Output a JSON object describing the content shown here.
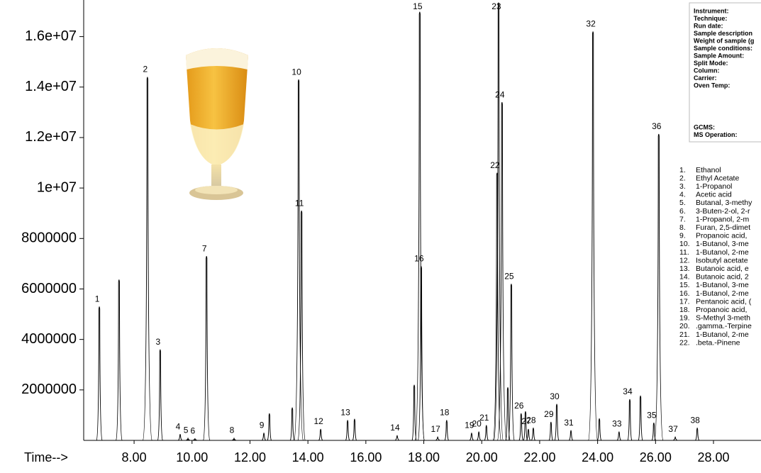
{
  "chart_data": {
    "type": "chromatogram",
    "x_label": "Time-->",
    "xlim": [
      6.26,
      29.64
    ],
    "ylim": [
      0,
      17450000
    ],
    "xticks": [
      {
        "value": 8,
        "label": "8.00"
      },
      {
        "value": 10,
        "label": "10.00"
      },
      {
        "value": 12,
        "label": "12.00"
      },
      {
        "value": 14,
        "label": "14.00"
      },
      {
        "value": 16,
        "label": "16.00"
      },
      {
        "value": 18,
        "label": "18.00"
      },
      {
        "value": 20,
        "label": "20.00"
      },
      {
        "value": 22,
        "label": "22.00"
      },
      {
        "value": 24,
        "label": "24.00"
      },
      {
        "value": 26,
        "label": "26.00"
      },
      {
        "value": 28,
        "label": "28.00"
      }
    ],
    "yticks": [
      2000000,
      4000000,
      6000000,
      8000000,
      {
        "value": 10000000,
        "label": "1e+07"
      },
      {
        "value": 12000000,
        "label": "1.2e+07"
      },
      {
        "value": 14000000,
        "label": "1.4e+07"
      },
      {
        "value": 16000000,
        "label": "1.6e+07"
      }
    ],
    "color": "#000000",
    "peak_labels": [
      1,
      null,
      2,
      3,
      4,
      5,
      6,
      7,
      8,
      9,
      null,
      null,
      10,
      11,
      12,
      13,
      null,
      14,
      null,
      15,
      16,
      17,
      18,
      19,
      20,
      21,
      22,
      23,
      24,
      null,
      25,
      26,
      null,
      27,
      28,
      29,
      30,
      31,
      32,
      null,
      33,
      34,
      null,
      35,
      36,
      37,
      38
    ],
    "x": [
      6.8,
      7.48,
      8.46,
      8.9,
      9.59,
      9.86,
      10.1,
      10.5,
      11.45,
      12.48,
      12.67,
      13.46,
      13.68,
      13.78,
      14.44,
      15.37,
      15.61,
      17.08,
      17.67,
      17.86,
      17.91,
      18.48,
      18.79,
      19.65,
      19.9,
      20.16,
      20.53,
      20.58,
      20.7,
      20.9,
      21.02,
      21.36,
      21.51,
      21.61,
      21.78,
      22.39,
      22.59,
      23.08,
      23.84,
      24.06,
      24.74,
      25.11,
      25.48,
      25.94,
      26.11,
      26.68,
      27.44
    ],
    "values": [
      5300000,
      6370000,
      14400000,
      3600000,
      250000,
      100000,
      80000,
      7300000,
      100000,
      300000,
      1070000,
      1300000,
      14300000,
      9100000,
      450000,
      800000,
      850000,
      200000,
      2200000,
      16980000,
      6900000,
      150000,
      800000,
      300000,
      350000,
      600000,
      10600000,
      17350000,
      13400000,
      2100000,
      6200000,
      1070000,
      1150000,
      450000,
      500000,
      730000,
      1440000,
      400000,
      16200000,
      870000,
      350000,
      1630000,
      1770000,
      700000,
      12140000,
      150000,
      500000
    ],
    "compounds": [
      {
        "number": "1.",
        "name": "Ethanol"
      },
      {
        "number": "2.",
        "name": "Ethyl Acetate"
      },
      {
        "number": "3.",
        "name": "1-Propanol"
      },
      {
        "number": "4.",
        "name": "Acetic acid"
      },
      {
        "number": "5.",
        "name": "Butanal, 3-methy"
      },
      {
        "number": "6.",
        "name": "3-Buten-2-ol, 2-r"
      },
      {
        "number": "7.",
        "name": "1-Propanol, 2-m"
      },
      {
        "number": "8.",
        "name": "Furan, 2,5-dimet"
      },
      {
        "number": "9.",
        "name": "Propanoic acid,"
      },
      {
        "number": "10.",
        "name": "1-Butanol, 3-me"
      },
      {
        "number": "11.",
        "name": "1-Butanol, 2-me"
      },
      {
        "number": "12.",
        "name": "Isobutyl acetate"
      },
      {
        "number": "13.",
        "name": "Butanoic acid, e"
      },
      {
        "number": "14.",
        "name": "Butanoic acid, 2"
      },
      {
        "number": "15.",
        "name": "1-Butanol, 3-me"
      },
      {
        "number": "16.",
        "name": "1-Butanol, 2-me"
      },
      {
        "number": "17.",
        "name": "Pentanoic acid, ("
      },
      {
        "number": "18.",
        "name": "Propanoic acid,"
      },
      {
        "number": "19.",
        "name": "S-Methyl 3-meth"
      },
      {
        "number": "20.",
        "name": ".gamma.-Terpine"
      },
      {
        "number": "21.",
        "name": "1-Butanol, 2-me"
      },
      {
        "number": "22.",
        "name": ".beta.-Pinene"
      }
    ],
    "info_fields": [
      "Instrument:",
      "Technique:",
      "Run date:",
      "Sample description",
      "Weight of sample (g",
      "Sample conditions:",
      "Sample Amount:",
      "Split Mode:",
      "Column:",
      "Carrier:",
      "Oven Temp:"
    ],
    "info_fields_2": [
      "GCMS:",
      "MS Operation:"
    ]
  }
}
